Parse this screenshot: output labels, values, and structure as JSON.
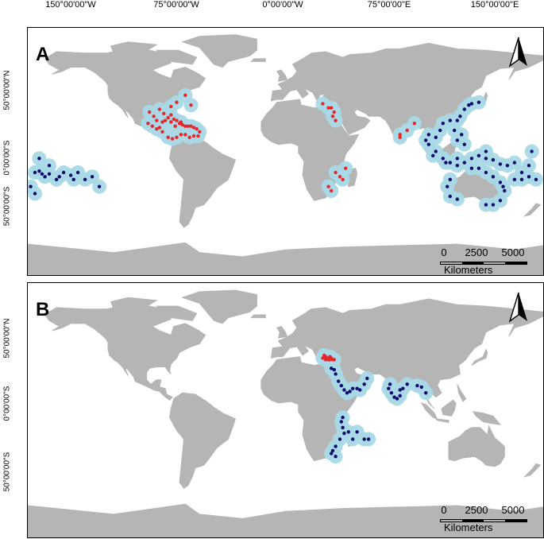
{
  "top_axis": [
    "150°00'00\"W",
    "75°00'00\"W",
    "0°00'00\"W",
    "75°00'00\"E",
    "150°00'00\"E"
  ],
  "left_axis": [
    "50°00'00\"N",
    "0°00'00\"S",
    "50°00'00\"S"
  ],
  "panels": [
    {
      "label": "A",
      "north": "N",
      "scale": {
        "ticks": [
          "0",
          "2500",
          "5000"
        ],
        "unit": "Kilometers"
      }
    },
    {
      "label": "B",
      "north": "N",
      "scale": {
        "ticks": [
          "0",
          "2500",
          "5000"
        ],
        "unit": "Kilometers"
      }
    }
  ],
  "colors": {
    "land": "#b5b5b5",
    "buffer": "#a9d9e6",
    "native": "#0a0a6e",
    "introduced": "#e8262a"
  },
  "occurrences": {
    "A": {
      "introduced": [
        [
          -95,
          28
        ],
        [
          -92,
          25
        ],
        [
          -88,
          30
        ],
        [
          -85,
          27
        ],
        [
          -82,
          24
        ],
        [
          -80,
          26
        ],
        [
          -78,
          23
        ],
        [
          -76,
          22
        ],
        [
          -74,
          20
        ],
        [
          -72,
          19
        ],
        [
          -70,
          18
        ],
        [
          -68,
          18
        ],
        [
          -66,
          18
        ],
        [
          -64,
          17
        ],
        [
          -62,
          16
        ],
        [
          -60,
          14
        ],
        [
          -61,
          11
        ],
        [
          -64,
          11
        ],
        [
          -67,
          10
        ],
        [
          -70,
          12
        ],
        [
          -73,
          12
        ],
        [
          -76,
          10
        ],
        [
          -79,
          9
        ],
        [
          -82,
          10
        ],
        [
          -86,
          14
        ],
        [
          -90,
          16
        ],
        [
          -93,
          18
        ],
        [
          -96,
          20
        ],
        [
          -90,
          22
        ],
        [
          -86,
          21
        ],
        [
          -84,
          22
        ],
        [
          -80,
          21
        ],
        [
          -77,
          18
        ],
        [
          -73,
          21
        ],
        [
          -66,
          33
        ],
        [
          -76,
          35
        ],
        [
          -80,
          32
        ],
        [
          -70,
          40
        ],
        [
          32,
          31
        ],
        [
          34,
          28
        ],
        [
          33,
          25
        ],
        [
          35,
          22
        ],
        [
          30,
          31
        ],
        [
          26,
          34
        ],
        [
          30,
          -25
        ],
        [
          32,
          -28
        ],
        [
          35,
          -15
        ],
        [
          38,
          -18
        ],
        [
          40,
          -20
        ],
        [
          42,
          -12
        ],
        [
          80,
          10
        ],
        [
          80,
          12
        ],
        [
          85,
          15
        ],
        [
          90,
          20
        ],
        [
          -88,
          17
        ]
      ],
      "native": [
        [
          -175,
          -15
        ],
        [
          -172,
          -14
        ],
        [
          -170,
          -16
        ],
        [
          -168,
          -18
        ],
        [
          -165,
          -16
        ],
        [
          -160,
          -20
        ],
        [
          -158,
          -18
        ],
        [
          -155,
          -15
        ],
        [
          -150,
          -17
        ],
        [
          -148,
          -20
        ],
        [
          -145,
          -15
        ],
        [
          -140,
          -20
        ],
        [
          -135,
          -18
        ],
        [
          -130,
          -25
        ],
        [
          -178,
          -25
        ],
        [
          -175,
          -30
        ],
        [
          -172,
          -5
        ],
        [
          -165,
          -10
        ],
        [
          100,
          5
        ],
        [
          105,
          0
        ],
        [
          110,
          -5
        ],
        [
          115,
          -8
        ],
        [
          120,
          -10
        ],
        [
          125,
          -8
        ],
        [
          130,
          -5
        ],
        [
          135,
          -3
        ],
        [
          140,
          -5
        ],
        [
          145,
          -6
        ],
        [
          150,
          -9
        ],
        [
          155,
          -10
        ],
        [
          160,
          -8
        ],
        [
          165,
          -15
        ],
        [
          170,
          -18
        ],
        [
          175,
          -20
        ],
        [
          105,
          10
        ],
        [
          108,
          15
        ],
        [
          110,
          20
        ],
        [
          115,
          22
        ],
        [
          120,
          22
        ],
        [
          122,
          25
        ],
        [
          125,
          30
        ],
        [
          128,
          33
        ],
        [
          130,
          34
        ],
        [
          135,
          35
        ],
        [
          115,
          -20
        ],
        [
          113,
          -25
        ],
        [
          115,
          -32
        ],
        [
          120,
          -34
        ],
        [
          130,
          -12
        ],
        [
          135,
          -12
        ],
        [
          140,
          -15
        ],
        [
          145,
          -18
        ],
        [
          150,
          -22
        ],
        [
          152,
          -25
        ],
        [
          153,
          -28
        ],
        [
          150,
          -35
        ],
        [
          145,
          -38
        ],
        [
          140,
          -38
        ],
        [
          125,
          5
        ],
        [
          120,
          8
        ],
        [
          123,
          12
        ],
        [
          118,
          15
        ],
        [
          100,
          12
        ],
        [
          98,
          8
        ],
        [
          103,
          -3
        ],
        [
          112,
          -8
        ],
        [
          120,
          -5
        ],
        [
          140,
          0
        ],
        [
          160,
          -20
        ],
        [
          165,
          -20
        ],
        [
          170,
          -10
        ],
        [
          172,
          0
        ]
      ]
    },
    "B": {
      "introduced": [
        [
          27,
          38
        ],
        [
          28,
          37
        ],
        [
          29,
          36
        ],
        [
          30,
          36
        ],
        [
          31,
          37
        ],
        [
          32,
          36
        ],
        [
          33,
          35
        ],
        [
          26,
          36
        ],
        [
          28,
          35
        ],
        [
          30,
          35
        ],
        [
          31,
          35
        ],
        [
          34,
          35
        ]
      ],
      "native": [
        [
          32,
          29
        ],
        [
          34,
          28
        ],
        [
          35,
          25
        ],
        [
          37,
          20
        ],
        [
          39,
          17
        ],
        [
          41,
          14
        ],
        [
          43,
          12
        ],
        [
          45,
          13
        ],
        [
          47,
          15
        ],
        [
          50,
          15
        ],
        [
          52,
          14
        ],
        [
          55,
          18
        ],
        [
          57,
          22
        ],
        [
          40,
          -5
        ],
        [
          39,
          -8
        ],
        [
          40,
          -12
        ],
        [
          41,
          -16
        ],
        [
          38,
          -20
        ],
        [
          35,
          -25
        ],
        [
          33,
          -28
        ],
        [
          32,
          -30
        ],
        [
          35,
          -32
        ],
        [
          44,
          -15
        ],
        [
          47,
          -20
        ],
        [
          50,
          -15
        ],
        [
          55,
          -20
        ],
        [
          58,
          -20
        ],
        [
          73,
          18
        ],
        [
          72,
          15
        ],
        [
          74,
          12
        ],
        [
          76,
          9
        ],
        [
          78,
          8
        ],
        [
          80,
          10
        ],
        [
          80,
          14
        ],
        [
          82,
          15
        ],
        [
          85,
          18
        ],
        [
          92,
          17
        ],
        [
          95,
          16
        ],
        [
          98,
          12
        ]
      ]
    }
  }
}
